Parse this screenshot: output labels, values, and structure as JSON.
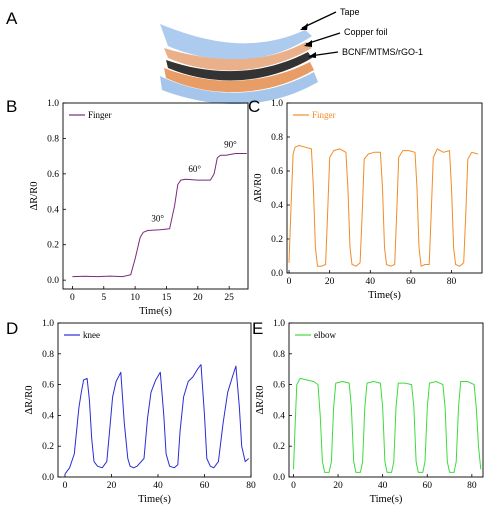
{
  "figure": {
    "panel_a": {
      "label": "A",
      "layers": [
        "Tape",
        "Copper foil",
        "BCNF/MTMS/rGO-1"
      ],
      "colors": {
        "tape": "#6f9fd8",
        "copper": "#e8a06a",
        "film": "#3a3a3a"
      }
    }
  },
  "chart_data": [
    {
      "panel": "B",
      "type": "line",
      "legend": "Finger",
      "color": "#7b2a7b",
      "xlabel": "Time(s)",
      "ylabel": "ΔR/R0",
      "xlim": [
        -1.5,
        28
      ],
      "ylim": [
        -0.05,
        1.0
      ],
      "xticks": [
        0,
        5,
        10,
        15,
        20,
        25
      ],
      "yticks": [
        0.0,
        0.2,
        0.4,
        0.6,
        0.8,
        1.0
      ],
      "annotations": [
        {
          "text": "30°",
          "x": 13.6,
          "y": 0.33
        },
        {
          "text": "60°",
          "x": 19.5,
          "y": 0.61
        },
        {
          "text": "90°",
          "x": 25.2,
          "y": 0.75
        }
      ],
      "x": [
        0,
        2,
        4,
        6,
        8,
        9.3,
        10,
        10.8,
        11.3,
        12,
        14,
        15.5,
        16.3,
        16.8,
        17.3,
        18,
        20,
        22,
        22.6,
        23.1,
        23.6,
        24.5,
        26,
        27.8
      ],
      "y": [
        0.02,
        0.022,
        0.02,
        0.023,
        0.02,
        0.03,
        0.12,
        0.24,
        0.27,
        0.28,
        0.285,
        0.29,
        0.42,
        0.54,
        0.565,
        0.57,
        0.565,
        0.565,
        0.6,
        0.69,
        0.705,
        0.705,
        0.715,
        0.715
      ]
    },
    {
      "panel": "C",
      "type": "line",
      "legend": "Finger",
      "color": "#f28c28",
      "xlabel": "Time(s)",
      "ylabel": "ΔR/R0",
      "xlim": [
        -1,
        95
      ],
      "ylim": [
        0.0,
        1.0
      ],
      "xticks": [
        0,
        20,
        40,
        60,
        80
      ],
      "yticks": [
        0.0,
        0.2,
        0.4,
        0.6,
        0.8,
        1.0
      ],
      "x": [
        0,
        1,
        2,
        3,
        5,
        8,
        11,
        12,
        13,
        14,
        16,
        18,
        19,
        20,
        22,
        25,
        28,
        29,
        30,
        31,
        33,
        35,
        36,
        37,
        39,
        42,
        45,
        46,
        47,
        48,
        50,
        52,
        53,
        54,
        56,
        59,
        62,
        63,
        64,
        65,
        67,
        69,
        70,
        71,
        73,
        76,
        79,
        80,
        81,
        82,
        84,
        86,
        87,
        88,
        90,
        93
      ],
      "y": [
        0.06,
        0.4,
        0.7,
        0.74,
        0.75,
        0.74,
        0.73,
        0.5,
        0.15,
        0.04,
        0.04,
        0.05,
        0.35,
        0.68,
        0.72,
        0.73,
        0.71,
        0.5,
        0.15,
        0.05,
        0.04,
        0.06,
        0.35,
        0.67,
        0.7,
        0.71,
        0.71,
        0.5,
        0.15,
        0.05,
        0.04,
        0.05,
        0.35,
        0.68,
        0.72,
        0.72,
        0.71,
        0.5,
        0.15,
        0.04,
        0.05,
        0.05,
        0.35,
        0.68,
        0.73,
        0.71,
        0.72,
        0.5,
        0.15,
        0.05,
        0.04,
        0.06,
        0.35,
        0.67,
        0.71,
        0.7
      ]
    },
    {
      "panel": "D",
      "type": "line",
      "legend": "knee",
      "color": "#2b2bd6",
      "xlabel": "Time(s)",
      "ylabel": "ΔR/R0",
      "xlim": [
        -3,
        80
      ],
      "ylim": [
        0.0,
        1.0
      ],
      "xticks": [
        0,
        20,
        40,
        60,
        80
      ],
      "yticks": [
        0.0,
        0.2,
        0.4,
        0.6,
        0.8,
        1.0
      ],
      "x": [
        0,
        2,
        4,
        5,
        6,
        7,
        8,
        9.5,
        10.5,
        11.5,
        12.5,
        14,
        16,
        18,
        19.5,
        20.5,
        22,
        24,
        25.5,
        27,
        28,
        29.5,
        31,
        34,
        35.5,
        37,
        39,
        41,
        42.5,
        43.5,
        45,
        47,
        48.5,
        49.5,
        51,
        53,
        55,
        57,
        58.5,
        60,
        61,
        62.5,
        64,
        66,
        68,
        70,
        72,
        73.5,
        75,
        76,
        77.5,
        79
      ],
      "y": [
        0.02,
        0.06,
        0.15,
        0.3,
        0.45,
        0.55,
        0.63,
        0.64,
        0.5,
        0.25,
        0.1,
        0.07,
        0.06,
        0.1,
        0.35,
        0.52,
        0.62,
        0.68,
        0.35,
        0.12,
        0.07,
        0.06,
        0.07,
        0.12,
        0.38,
        0.55,
        0.63,
        0.68,
        0.4,
        0.15,
        0.07,
        0.06,
        0.08,
        0.3,
        0.52,
        0.62,
        0.65,
        0.7,
        0.73,
        0.4,
        0.12,
        0.07,
        0.06,
        0.1,
        0.35,
        0.55,
        0.65,
        0.72,
        0.45,
        0.2,
        0.1,
        0.12
      ]
    },
    {
      "panel": "E",
      "type": "line",
      "legend": "elbow",
      "color": "#3ddc3d",
      "xlabel": "Time(s)",
      "ylabel": "ΔR/R0",
      "xlim": [
        -2,
        85
      ],
      "ylim": [
        0.0,
        1.0
      ],
      "xticks": [
        0,
        20,
        40,
        60,
        80
      ],
      "yticks": [
        0.0,
        0.2,
        0.4,
        0.6,
        0.8,
        1.0
      ],
      "x": [
        0,
        0.8,
        1.5,
        3,
        6,
        9,
        11,
        12,
        13,
        14,
        16,
        17,
        18,
        19,
        22,
        25,
        26,
        27,
        28,
        30,
        31,
        32,
        33,
        36,
        39,
        40,
        41,
        42,
        44,
        45,
        46,
        47,
        50,
        53,
        54,
        55,
        56,
        58,
        59,
        60,
        61,
        64,
        67,
        68,
        69,
        70,
        72,
        73,
        74,
        75,
        78,
        81,
        82,
        83,
        84
      ],
      "y": [
        0.05,
        0.35,
        0.6,
        0.64,
        0.63,
        0.62,
        0.6,
        0.4,
        0.1,
        0.03,
        0.03,
        0.1,
        0.45,
        0.61,
        0.62,
        0.61,
        0.45,
        0.1,
        0.03,
        0.03,
        0.1,
        0.45,
        0.61,
        0.62,
        0.61,
        0.45,
        0.1,
        0.03,
        0.03,
        0.1,
        0.45,
        0.61,
        0.61,
        0.6,
        0.45,
        0.1,
        0.03,
        0.03,
        0.1,
        0.45,
        0.61,
        0.62,
        0.6,
        0.45,
        0.1,
        0.03,
        0.03,
        0.1,
        0.45,
        0.62,
        0.62,
        0.6,
        0.45,
        0.2,
        0.05
      ]
    }
  ]
}
